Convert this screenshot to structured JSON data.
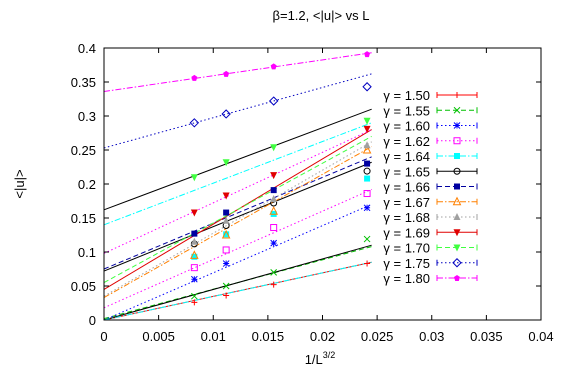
{
  "chart_data": {
    "type": "scatter",
    "title": "β=1.2, <|u|> vs L",
    "xlabel": "1/L",
    "xlabel_sup": "3/2",
    "ylabel": "<|u|>",
    "xlim": [
      0,
      0.04
    ],
    "ylim": [
      0,
      0.4
    ],
    "x_ticks": [
      "0",
      "0.005",
      "0.01",
      "0.015",
      "0.02",
      "0.025",
      "0.03",
      "0.035",
      "0.04"
    ],
    "y_ticks": [
      "0",
      "0.05",
      "0.1",
      "0.15",
      "0.2",
      "0.25",
      "0.3",
      "0.35",
      "0.4"
    ],
    "grid": false,
    "legend_position": "right",
    "series": [
      {
        "name": "γ = 1.50",
        "color": "#ff0000",
        "marker": "plus",
        "dash": "solid",
        "x": [
          0.00827,
          0.01118,
          0.01553,
          0.02408
        ],
        "y": [
          0.026,
          0.036,
          0.052,
          0.083
        ],
        "fit": [
          [
            0,
            0.0
          ],
          [
            0.0245,
            0.085
          ]
        ]
      },
      {
        "name": "γ = 1.55",
        "color": "#00c000",
        "marker": "x",
        "dash": "dashed",
        "x": [
          0.00827,
          0.01118,
          0.01553,
          0.02408
        ],
        "y": [
          0.035,
          0.05,
          0.07,
          0.119
        ],
        "fit": [
          [
            0,
            0.002
          ],
          [
            0.0245,
            0.108
          ]
        ]
      },
      {
        "name": "γ = 1.60",
        "color": "#0000ff",
        "marker": "star",
        "dash": "dotted",
        "x": [
          0.00827,
          0.01118,
          0.01553,
          0.02408
        ],
        "y": [
          0.06,
          0.083,
          0.113,
          0.165
        ],
        "fit": [
          [
            0,
            0.0
          ],
          [
            0.0245,
            0.17
          ]
        ]
      },
      {
        "name": "γ = 1.62",
        "color": "#ff00ff",
        "marker": "square-open",
        "dash": "dotted",
        "x": [
          0.00827,
          0.01118,
          0.01553,
          0.02408
        ],
        "y": [
          0.077,
          0.103,
          0.136,
          0.186
        ],
        "fit": [
          [
            0,
            0.018
          ],
          [
            0.0245,
            0.192
          ]
        ]
      },
      {
        "name": "γ = 1.64",
        "color": "#00ffff",
        "marker": "square",
        "dash": "dashdot",
        "x": [
          0.00827,
          0.01118,
          0.01553,
          0.02408
        ],
        "y": [
          0.093,
          0.126,
          0.156,
          0.208
        ],
        "fit": [
          [
            0,
            0.0
          ],
          [
            0.0245,
            0.0
          ]
        ]
      },
      {
        "name": "γ = 1.65",
        "color": "#000000",
        "marker": "circle-open",
        "dash": "solid",
        "x": [
          0.00827,
          0.01118,
          0.01553,
          0.02408
        ],
        "y": [
          0.112,
          0.139,
          0.172,
          0.219
        ],
        "fit": [
          [
            0,
            0.072
          ],
          [
            0.0245,
            0.232
          ]
        ]
      },
      {
        "name": "γ = 1.66",
        "color": "#0000a0",
        "marker": "square",
        "dash": "dashed",
        "x": [
          0.00827,
          0.01118,
          0.01553,
          0.02408
        ],
        "y": [
          0.127,
          0.158,
          0.191,
          0.23
        ],
        "fit": [
          [
            0,
            0.075
          ],
          [
            0.0245,
            0.24
          ]
        ]
      },
      {
        "name": "γ = 1.67",
        "color": "#ff8000",
        "marker": "triangle-open",
        "dash": "dashdot",
        "x": [
          0.00827,
          0.01118,
          0.01553,
          0.02408
        ],
        "y": [
          0.095,
          0.125,
          0.16,
          0.25
        ],
        "fit": [
          [
            0,
            0.033
          ],
          [
            0.0245,
            0.255
          ]
        ]
      },
      {
        "name": "γ = 1.68",
        "color": "#a0a0a0",
        "marker": "triangle",
        "dash": "dotted",
        "x": [
          0.00827,
          0.01118,
          0.01553,
          0.02408
        ],
        "y": [
          0.115,
          0.146,
          0.178,
          0.257
        ],
        "fit": [
          [
            0,
            0.035
          ],
          [
            0.0245,
            0.262
          ]
        ]
      },
      {
        "name": "γ = 1.69",
        "color": "#e00000",
        "marker": "triangle-down",
        "dash": "solid",
        "x": [
          0.00827,
          0.01118,
          0.01553,
          0.02408
        ],
        "y": [
          0.158,
          0.183,
          0.213,
          0.281
        ],
        "fit": [
          [
            0,
            0.045
          ],
          [
            0.0245,
            0.28
          ]
        ]
      },
      {
        "name": "γ = 1.70",
        "color": "#40ff40",
        "marker": "triangle-down",
        "dash": "dashed",
        "x": [
          0.00827,
          0.01118,
          0.01553,
          0.02408
        ],
        "y": [
          0.21,
          0.232,
          0.254,
          0.293
        ],
        "fit": [
          [
            0,
            0.055
          ],
          [
            0.0245,
            0.27
          ]
        ]
      },
      {
        "name": "γ = 1.75",
        "color": "#0000c0",
        "marker": "diamond-open",
        "dash": "dotted",
        "x": [
          0.00827,
          0.01118,
          0.01553,
          0.02408
        ],
        "y": [
          0.29,
          0.303,
          0.322,
          0.343
        ],
        "fit": [
          [
            0,
            0.253
          ],
          [
            0.0245,
            0.362
          ]
        ]
      },
      {
        "name": "γ = 1.80",
        "color": "#ff00ff",
        "marker": "pentagon",
        "dash": "dashdot",
        "x": [
          0.00827,
          0.01118,
          0.01553,
          0.02408
        ],
        "y": [
          0.356,
          0.362,
          0.373,
          0.391
        ],
        "fit": [
          [
            0,
            0.336
          ],
          [
            0.0245,
            0.393
          ]
        ]
      }
    ],
    "extra_lines": [
      {
        "color": "#000000",
        "dash": "solid",
        "from": [
          0,
          0.162
        ],
        "to": [
          0.0245,
          0.31
        ]
      },
      {
        "color": "#00ffff",
        "dash": "dashdot",
        "from": [
          0,
          0.14
        ],
        "to": [
          0.0245,
          0.29
        ]
      },
      {
        "color": "#000000",
        "dash": "solid",
        "from": [
          0,
          0.0
        ],
        "to": [
          0.0245,
          0.11
        ]
      },
      {
        "color": "#00ffff",
        "dash": "dashdot",
        "from": [
          0,
          0.0
        ],
        "to": [
          0.0245,
          0.085
        ]
      },
      {
        "color": "#ff00ff",
        "dash": "dotted",
        "from": [
          0,
          0.098
        ],
        "to": [
          0.0245,
          0.28
        ]
      }
    ]
  }
}
